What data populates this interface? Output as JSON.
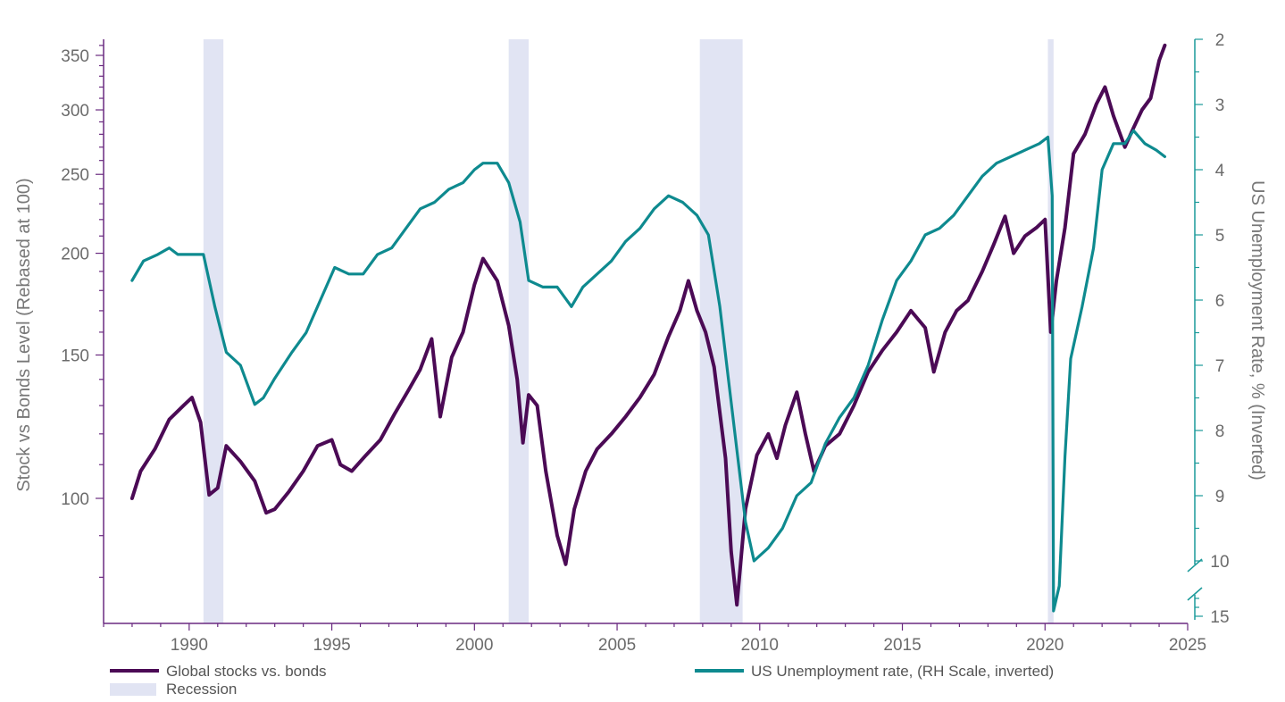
{
  "chart_data": {
    "type": "line",
    "xlabel": "",
    "x_ticks": [
      "1990",
      "1995",
      "2000",
      "2005",
      "2010",
      "2015",
      "2020",
      "2025"
    ],
    "xlim": [
      1987.0,
      2025.0
    ],
    "left_axis": {
      "title": "Stock vs Bonds Level (Rebased at 100)",
      "scale": "log",
      "ticks": [
        "100",
        "150",
        "200",
        "250",
        "300",
        "350"
      ],
      "range": [
        75,
        365
      ]
    },
    "right_axis": {
      "title": "US Unemployment Rate, % (Inverted)",
      "inverted": true,
      "broken": true,
      "ticks": [
        "2",
        "3",
        "4",
        "5",
        "6",
        "7",
        "8",
        "9",
        "10",
        "15"
      ],
      "range": [
        2,
        15
      ]
    },
    "recessions": [
      {
        "start": 1990.5,
        "end": 1991.2
      },
      {
        "start": 2001.2,
        "end": 2001.9
      },
      {
        "start": 2007.9,
        "end": 2009.4
      },
      {
        "start": 2020.1,
        "end": 2020.3
      }
    ],
    "series": [
      {
        "name": "Global stocks vs. bonds",
        "axis": "left",
        "color": "#4b0a55",
        "points": [
          [
            1988.0,
            100
          ],
          [
            1988.3,
            108
          ],
          [
            1988.8,
            115
          ],
          [
            1989.3,
            125
          ],
          [
            1989.8,
            130
          ],
          [
            1990.1,
            133
          ],
          [
            1990.4,
            124
          ],
          [
            1990.7,
            101
          ],
          [
            1991.0,
            103
          ],
          [
            1991.3,
            116
          ],
          [
            1991.8,
            111
          ],
          [
            1992.3,
            105
          ],
          [
            1992.7,
            96
          ],
          [
            1993.0,
            97
          ],
          [
            1993.5,
            102
          ],
          [
            1994.0,
            108
          ],
          [
            1994.5,
            116
          ],
          [
            1995.0,
            118
          ],
          [
            1995.3,
            110
          ],
          [
            1995.7,
            108
          ],
          [
            1996.2,
            113
          ],
          [
            1996.7,
            118
          ],
          [
            1997.2,
            127
          ],
          [
            1997.7,
            136
          ],
          [
            1998.1,
            144
          ],
          [
            1998.5,
            157
          ],
          [
            1998.8,
            126
          ],
          [
            1999.2,
            149
          ],
          [
            1999.6,
            160
          ],
          [
            2000.0,
            183
          ],
          [
            2000.3,
            197
          ],
          [
            2000.8,
            185
          ],
          [
            2001.2,
            163
          ],
          [
            2001.5,
            140
          ],
          [
            2001.7,
            117
          ],
          [
            2001.9,
            134
          ],
          [
            2002.2,
            130
          ],
          [
            2002.5,
            108
          ],
          [
            2002.9,
            90
          ],
          [
            2003.2,
            83
          ],
          [
            2003.5,
            97
          ],
          [
            2003.9,
            108
          ],
          [
            2004.3,
            115
          ],
          [
            2004.8,
            120
          ],
          [
            2005.3,
            126
          ],
          [
            2005.8,
            133
          ],
          [
            2006.3,
            142
          ],
          [
            2006.8,
            158
          ],
          [
            2007.2,
            170
          ],
          [
            2007.5,
            185
          ],
          [
            2007.8,
            170
          ],
          [
            2008.1,
            160
          ],
          [
            2008.4,
            145
          ],
          [
            2008.8,
            112
          ],
          [
            2009.0,
            86
          ],
          [
            2009.2,
            74
          ],
          [
            2009.5,
            97
          ],
          [
            2009.9,
            113
          ],
          [
            2010.3,
            120
          ],
          [
            2010.6,
            112
          ],
          [
            2010.9,
            123
          ],
          [
            2011.3,
            135
          ],
          [
            2011.6,
            120
          ],
          [
            2011.9,
            108
          ],
          [
            2012.3,
            116
          ],
          [
            2012.8,
            120
          ],
          [
            2013.3,
            130
          ],
          [
            2013.8,
            143
          ],
          [
            2014.3,
            152
          ],
          [
            2014.8,
            160
          ],
          [
            2015.3,
            170
          ],
          [
            2015.8,
            162
          ],
          [
            2016.1,
            143
          ],
          [
            2016.5,
            160
          ],
          [
            2016.9,
            170
          ],
          [
            2017.3,
            175
          ],
          [
            2017.8,
            190
          ],
          [
            2018.2,
            205
          ],
          [
            2018.6,
            222
          ],
          [
            2018.9,
            200
          ],
          [
            2019.3,
            210
          ],
          [
            2019.7,
            215
          ],
          [
            2020.0,
            220
          ],
          [
            2020.2,
            160
          ],
          [
            2020.4,
            185
          ],
          [
            2020.7,
            215
          ],
          [
            2021.0,
            265
          ],
          [
            2021.4,
            280
          ],
          [
            2021.8,
            305
          ],
          [
            2022.1,
            320
          ],
          [
            2022.4,
            295
          ],
          [
            2022.8,
            270
          ],
          [
            2023.1,
            285
          ],
          [
            2023.4,
            300
          ],
          [
            2023.7,
            310
          ],
          [
            2024.0,
            345
          ],
          [
            2024.2,
            360
          ]
        ]
      },
      {
        "name": "US Unemployment rate, (RH Scale, inverted)",
        "axis": "right",
        "color": "#0e8a8f",
        "points": [
          [
            1988.0,
            5.7
          ],
          [
            1988.4,
            5.4
          ],
          [
            1988.9,
            5.3
          ],
          [
            1989.3,
            5.2
          ],
          [
            1989.6,
            5.3
          ],
          [
            1990.0,
            5.3
          ],
          [
            1990.5,
            5.3
          ],
          [
            1990.9,
            6.1
          ],
          [
            1991.3,
            6.8
          ],
          [
            1991.8,
            7.0
          ],
          [
            1992.3,
            7.6
          ],
          [
            1992.6,
            7.5
          ],
          [
            1993.0,
            7.2
          ],
          [
            1993.6,
            6.8
          ],
          [
            1994.1,
            6.5
          ],
          [
            1994.6,
            6.0
          ],
          [
            1995.1,
            5.5
          ],
          [
            1995.6,
            5.6
          ],
          [
            1996.1,
            5.6
          ],
          [
            1996.6,
            5.3
          ],
          [
            1997.1,
            5.2
          ],
          [
            1997.6,
            4.9
          ],
          [
            1998.1,
            4.6
          ],
          [
            1998.6,
            4.5
          ],
          [
            1999.1,
            4.3
          ],
          [
            1999.6,
            4.2
          ],
          [
            2000.0,
            4.0
          ],
          [
            2000.3,
            3.9
          ],
          [
            2000.8,
            3.9
          ],
          [
            2001.2,
            4.2
          ],
          [
            2001.6,
            4.8
          ],
          [
            2001.9,
            5.7
          ],
          [
            2002.4,
            5.8
          ],
          [
            2002.9,
            5.8
          ],
          [
            2003.4,
            6.1
          ],
          [
            2003.8,
            5.8
          ],
          [
            2004.3,
            5.6
          ],
          [
            2004.8,
            5.4
          ],
          [
            2005.3,
            5.1
          ],
          [
            2005.8,
            4.9
          ],
          [
            2006.3,
            4.6
          ],
          [
            2006.8,
            4.4
          ],
          [
            2007.3,
            4.5
          ],
          [
            2007.8,
            4.7
          ],
          [
            2008.2,
            5.0
          ],
          [
            2008.6,
            6.1
          ],
          [
            2008.9,
            7.2
          ],
          [
            2009.2,
            8.3
          ],
          [
            2009.5,
            9.4
          ],
          [
            2009.8,
            10.0
          ],
          [
            2010.3,
            9.8
          ],
          [
            2010.8,
            9.5
          ],
          [
            2011.3,
            9.0
          ],
          [
            2011.8,
            8.8
          ],
          [
            2012.3,
            8.2
          ],
          [
            2012.8,
            7.8
          ],
          [
            2013.3,
            7.5
          ],
          [
            2013.8,
            7.0
          ],
          [
            2014.3,
            6.3
          ],
          [
            2014.8,
            5.7
          ],
          [
            2015.3,
            5.4
          ],
          [
            2015.8,
            5.0
          ],
          [
            2016.3,
            4.9
          ],
          [
            2016.8,
            4.7
          ],
          [
            2017.3,
            4.4
          ],
          [
            2017.8,
            4.1
          ],
          [
            2018.3,
            3.9
          ],
          [
            2018.8,
            3.8
          ],
          [
            2019.3,
            3.7
          ],
          [
            2019.8,
            3.6
          ],
          [
            2020.1,
            3.5
          ],
          [
            2020.25,
            4.4
          ],
          [
            2020.3,
            14.7
          ],
          [
            2020.5,
            13.3
          ],
          [
            2020.7,
            8.4
          ],
          [
            2020.9,
            6.9
          ],
          [
            2021.3,
            6.1
          ],
          [
            2021.7,
            5.2
          ],
          [
            2022.0,
            4.0
          ],
          [
            2022.4,
            3.6
          ],
          [
            2022.8,
            3.6
          ],
          [
            2023.1,
            3.4
          ],
          [
            2023.5,
            3.6
          ],
          [
            2023.9,
            3.7
          ],
          [
            2024.2,
            3.8
          ]
        ]
      }
    ],
    "legend": [
      {
        "label": "Global stocks vs. bonds",
        "type": "line",
        "color": "#4b0a55"
      },
      {
        "label": "US Unemployment rate, (RH Scale, inverted)",
        "type": "line",
        "color": "#0e8a8f"
      },
      {
        "label": "Recession",
        "type": "box",
        "color": "#e1e4f3"
      }
    ],
    "legend_position": "bottom",
    "colors": {
      "axis": "#6a2a80",
      "right_axis": "#1a9a9a",
      "recession": "#e1e4f3"
    }
  }
}
